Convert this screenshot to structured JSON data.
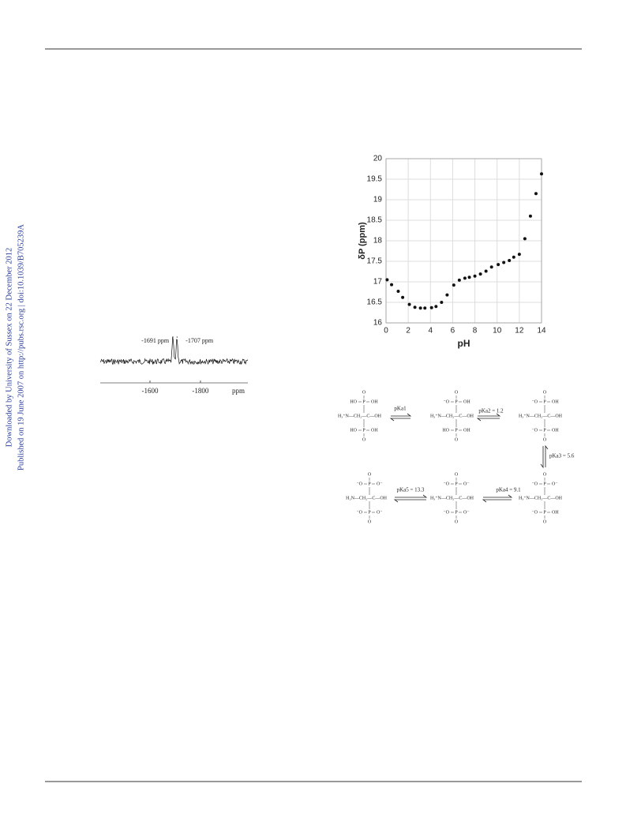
{
  "side_text": [
    "Downloaded by University of Sussex on 22 December 2012",
    "Published on 19 June 2007 on http://pubs.rsc.org | doi:10.1039/B705239A"
  ],
  "chart_data": [
    {
      "type": "spectrum",
      "xlabel": "ppm",
      "xlim": [
        -1403,
        -1988
      ],
      "xticks": [
        -1600,
        -1800
      ],
      "peaks": [
        {
          "value": -1691,
          "label": "-1691 ppm"
        },
        {
          "value": -1707,
          "label": "-1707 ppm"
        }
      ],
      "color": "#111111"
    },
    {
      "type": "scatter",
      "xlabel": "pH",
      "ylabel": "δP (ppm)",
      "xlim": [
        0,
        14
      ],
      "ylim": [
        16,
        20
      ],
      "xticks": [
        0,
        2,
        4,
        6,
        8,
        10,
        12,
        14
      ],
      "yticks": [
        16,
        16.5,
        17,
        17.5,
        18,
        18.5,
        19,
        19.5,
        20
      ],
      "grid": true,
      "color": "#111111",
      "x": [
        0.1,
        0.5,
        1.1,
        1.5,
        2.1,
        2.6,
        3.1,
        3.5,
        4.1,
        4.5,
        5.0,
        5.5,
        6.1,
        6.6,
        7.1,
        7.5,
        8.0,
        8.5,
        9.0,
        9.5,
        10.1,
        10.6,
        11.1,
        11.5,
        12.0,
        12.5,
        13.0,
        13.5,
        14.0
      ],
      "values": [
        17.05,
        16.93,
        16.77,
        16.62,
        16.45,
        16.38,
        16.36,
        16.36,
        16.37,
        16.4,
        16.5,
        16.68,
        16.92,
        17.04,
        17.09,
        17.11,
        17.14,
        17.19,
        17.26,
        17.36,
        17.42,
        17.47,
        17.52,
        17.6,
        17.67,
        18.05,
        18.6,
        19.15,
        19.63
      ]
    }
  ],
  "scheme": {
    "structures": [
      {
        "top_o": "O",
        "top": [
          "HO",
          "P",
          "OH"
        ],
        "mid": "H₃⁺N—CH₂—C—OH",
        "bottom": [
          "HO",
          "P",
          "OH"
        ],
        "bottom_o": "O"
      },
      {
        "top_o": "O",
        "top": [
          "⁻O",
          "P",
          "OH"
        ],
        "mid": "H₃⁺N—CH₂—C—OH",
        "bottom": [
          "HO",
          "P",
          "OH"
        ],
        "bottom_o": "O"
      },
      {
        "top_o": "O",
        "top": [
          "⁻O",
          "P",
          "OH"
        ],
        "mid": "H₃⁺N—CH₂—C—OH",
        "bottom": [
          "⁻O",
          "P",
          "OH"
        ],
        "bottom_o": "O"
      },
      {
        "top_o": "O",
        "top": [
          "⁻O",
          "P",
          "O⁻"
        ],
        "mid": "H₃⁺N—CH₂—C—OH",
        "bottom": [
          "⁻O",
          "P",
          "OH"
        ],
        "bottom_o": "O"
      },
      {
        "top_o": "O",
        "top": [
          "⁻O",
          "P",
          "O⁻"
        ],
        "mid": "H₃⁺N—CH₂—C—OH",
        "bottom": [
          "⁻O",
          "P",
          "O⁻"
        ],
        "bottom_o": "O"
      },
      {
        "top_o": "O",
        "top": [
          "⁻O",
          "P",
          "O⁻"
        ],
        "mid": "H₂N—CH₂—C—OH",
        "bottom": [
          "⁻O",
          "P",
          "O⁻"
        ],
        "bottom_o": "O"
      }
    ],
    "equilibria": [
      "pKa1",
      "pKa2 = 1.2",
      "pKa3 = 5.6",
      "pKa4 = 9.1",
      "pKa5 = 13.3"
    ]
  }
}
